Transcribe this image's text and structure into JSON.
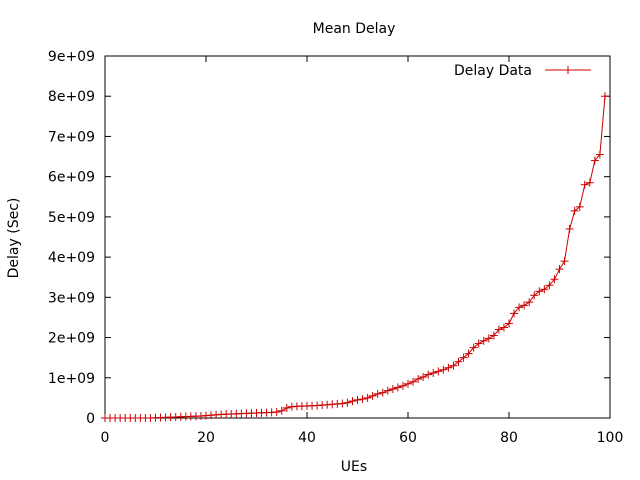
{
  "chart_data": {
    "type": "line",
    "title": "Mean Delay",
    "xlabel": "UEs",
    "ylabel": "Delay (Sec)",
    "xlim": [
      0,
      100
    ],
    "ylim": [
      0,
      9000000000
    ],
    "x_ticks": [
      "0",
      "20",
      "40",
      "60",
      "80",
      "100"
    ],
    "y_ticks": [
      "0",
      "1e+09",
      "2e+09",
      "3e+09",
      "4e+09",
      "5e+09",
      "6e+09",
      "7e+09",
      "8e+09",
      "9e+09"
    ],
    "grid": false,
    "legend_position": "top-right",
    "series": [
      {
        "name": "Delay Data",
        "color": "#cc0000",
        "marker": "plus",
        "x": [
          0,
          1,
          2,
          3,
          4,
          5,
          6,
          7,
          8,
          9,
          10,
          11,
          12,
          13,
          14,
          15,
          16,
          17,
          18,
          19,
          20,
          21,
          22,
          23,
          24,
          25,
          26,
          27,
          28,
          29,
          30,
          31,
          32,
          33,
          34,
          35,
          36,
          37,
          38,
          39,
          40,
          41,
          42,
          43,
          44,
          45,
          46,
          47,
          48,
          49,
          50,
          51,
          52,
          53,
          54,
          55,
          56,
          57,
          58,
          59,
          60,
          61,
          62,
          63,
          64,
          65,
          66,
          67,
          68,
          69,
          70,
          71,
          72,
          73,
          74,
          75,
          76,
          77,
          78,
          79,
          80,
          81,
          82,
          83,
          84,
          85,
          86,
          87,
          88,
          89,
          90,
          91,
          92,
          93,
          94,
          95,
          96,
          97,
          98,
          99
        ],
        "y": [
          0,
          0,
          0,
          0,
          0,
          0,
          0,
          0,
          0,
          0,
          5000000,
          10000000,
          15000000,
          20000000,
          25000000,
          30000000,
          35000000,
          40000000,
          45000000,
          50000000,
          60000000,
          70000000,
          80000000,
          90000000,
          95000000,
          100000000,
          105000000,
          110000000,
          115000000,
          120000000,
          125000000,
          130000000,
          135000000,
          140000000,
          150000000,
          180000000,
          250000000,
          280000000,
          290000000,
          295000000,
          300000000,
          305000000,
          310000000,
          320000000,
          330000000,
          340000000,
          350000000,
          360000000,
          380000000,
          420000000,
          450000000,
          470000000,
          500000000,
          550000000,
          600000000,
          630000000,
          680000000,
          720000000,
          760000000,
          800000000,
          850000000,
          900000000,
          970000000,
          1020000000,
          1080000000,
          1120000000,
          1160000000,
          1200000000,
          1250000000,
          1300000000,
          1400000000,
          1500000000,
          1600000000,
          1750000000,
          1850000000,
          1920000000,
          1980000000,
          2050000000,
          2200000000,
          2250000000,
          2350000000,
          2600000000,
          2750000000,
          2800000000,
          2880000000,
          3050000000,
          3150000000,
          3200000000,
          3300000000,
          3450000000,
          3700000000,
          3900000000,
          4700000000,
          5150000000,
          5250000000,
          5800000000,
          5850000000,
          6400000000,
          6550000000,
          8000000000
        ]
      }
    ]
  }
}
